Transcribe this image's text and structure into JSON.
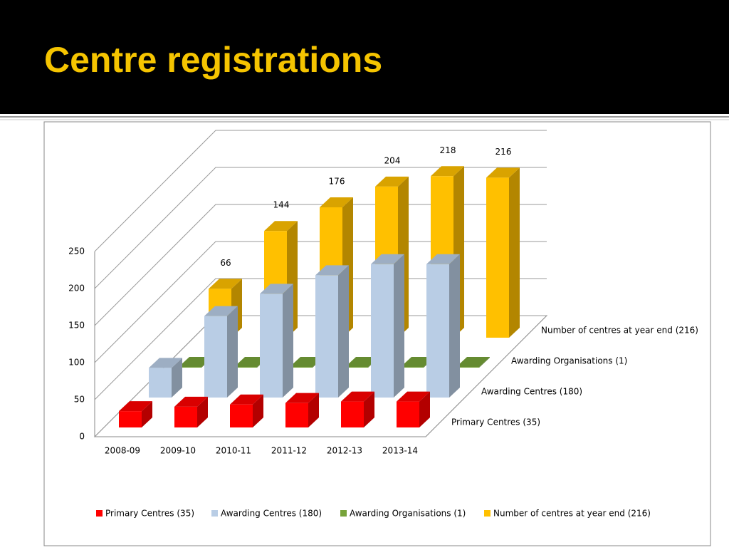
{
  "chart_data": {
    "type": "bar3d",
    "title": "Centre registrations",
    "categories": [
      "2008-09",
      "2009-10",
      "2010-11",
      "2011-12",
      "2012-13",
      "2013-14"
    ],
    "series": [
      {
        "name": "Primary Centres (35)",
        "color": "#ff0000",
        "values": [
          22,
          28,
          31,
          33,
          35,
          35
        ]
      },
      {
        "name": "Awarding Centres (180)",
        "color": "#b9cde5",
        "values": [
          40,
          110,
          140,
          165,
          180,
          180
        ]
      },
      {
        "name": "Awarding Organisations (1)",
        "color": "#77a33a",
        "values": [
          1,
          1,
          1,
          1,
          1,
          1
        ]
      },
      {
        "name": "Number of centres at year end  (216)",
        "color": "#ffc000",
        "values": [
          66,
          144,
          176,
          204,
          218,
          216
        ]
      }
    ],
    "ylim": [
      0,
      250
    ],
    "yticks": [
      0,
      50,
      100,
      150,
      200,
      250
    ],
    "grid": true,
    "legend": "bottom"
  }
}
